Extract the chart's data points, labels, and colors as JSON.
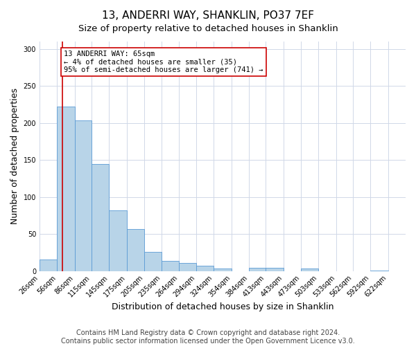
{
  "title": "13, ANDERRI WAY, SHANKLIN, PO37 7EF",
  "subtitle": "Size of property relative to detached houses in Shanklin",
  "xlabel": "Distribution of detached houses by size in Shanklin",
  "ylabel": "Number of detached properties",
  "bar_left_edges": [
    26,
    56,
    86,
    115,
    145,
    175,
    205,
    235,
    264,
    294,
    324,
    354,
    384,
    413,
    443,
    473,
    503,
    533,
    562,
    592
  ],
  "bar_heights": [
    16,
    222,
    203,
    145,
    82,
    57,
    26,
    14,
    11,
    7,
    3,
    0,
    4,
    4,
    0,
    3,
    0,
    0,
    0,
    1
  ],
  "bar_widths": [
    30,
    30,
    29,
    30,
    30,
    30,
    30,
    29,
    30,
    30,
    30,
    30,
    29,
    30,
    30,
    30,
    30,
    29,
    30,
    30
  ],
  "tick_labels": [
    "26sqm",
    "56sqm",
    "86sqm",
    "115sqm",
    "145sqm",
    "175sqm",
    "205sqm",
    "235sqm",
    "264sqm",
    "294sqm",
    "324sqm",
    "354sqm",
    "384sqm",
    "413sqm",
    "443sqm",
    "473sqm",
    "503sqm",
    "533sqm",
    "562sqm",
    "592sqm",
    "622sqm"
  ],
  "bar_color": "#b8d4e8",
  "bar_edge_color": "#5b9bd5",
  "vline_x": 65,
  "vline_color": "#cc0000",
  "annotation_line1": "13 ANDERRI WAY: 65sqm",
  "annotation_line2": "← 4% of detached houses are smaller (35)",
  "annotation_line3": "95% of semi-detached houses are larger (741) →",
  "annotation_box_color": "#cc0000",
  "ylim": [
    0,
    310
  ],
  "yticks": [
    0,
    50,
    100,
    150,
    200,
    250,
    300
  ],
  "footer1": "Contains HM Land Registry data © Crown copyright and database right 2024.",
  "footer2": "Contains public sector information licensed under the Open Government Licence v3.0.",
  "background_color": "#ffffff",
  "grid_color": "#d0d8e8",
  "title_fontsize": 11,
  "subtitle_fontsize": 9.5,
  "axis_label_fontsize": 9,
  "tick_fontsize": 7,
  "annotation_fontsize": 7.5,
  "footer_fontsize": 7
}
